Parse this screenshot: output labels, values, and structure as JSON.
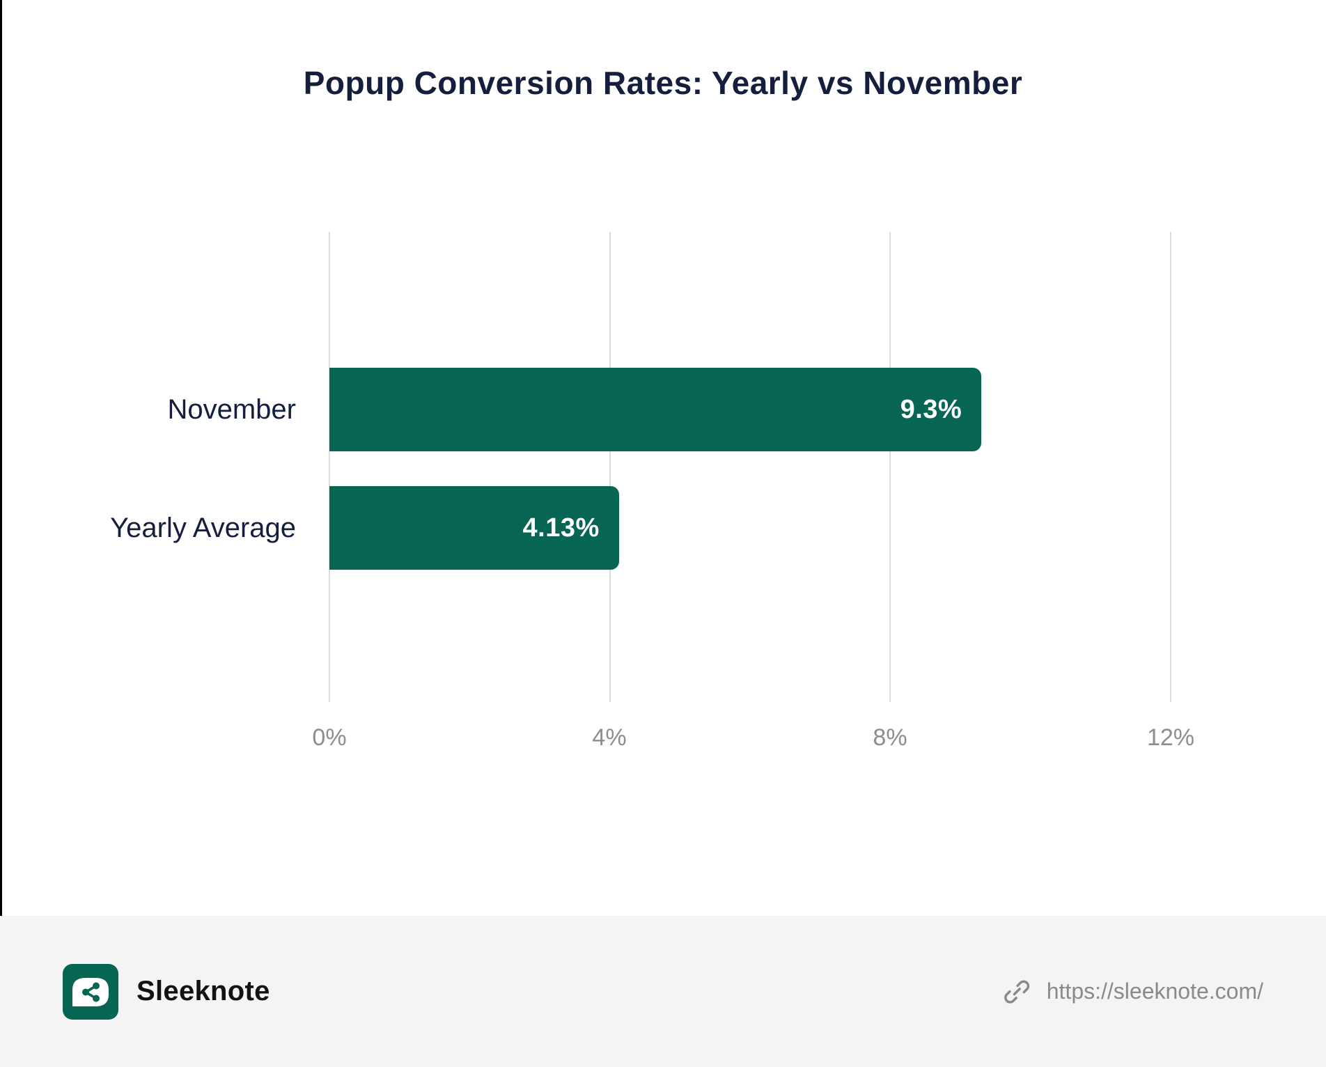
{
  "title": "Popup Conversion Rates: Yearly vs November",
  "chart_data": {
    "type": "bar",
    "orientation": "horizontal",
    "title": "Popup Conversion Rates: Yearly vs November",
    "categories": [
      "November",
      "Yearly Average"
    ],
    "values": [
      9.3,
      4.13
    ],
    "value_labels": [
      "9.3%",
      "4.13%"
    ],
    "xlim": [
      0,
      12
    ],
    "x_ticks": [
      "0%",
      "4%",
      "8%",
      "12%"
    ],
    "x_tick_values": [
      0,
      4,
      8,
      12
    ],
    "grid": true,
    "legend_position": "none",
    "bar_color": "#066553",
    "value_label_color": "#ffffff"
  },
  "footer": {
    "brand": "Sleeknote",
    "url": "https://sleeknote.com/",
    "logo_icon": "sleeknote-share-bubble-icon",
    "link_icon": "chain-link-icon"
  },
  "colors": {
    "bar": "#066553",
    "title_text": "#151e3d",
    "category_text": "#151e3d",
    "tick_text": "#8d8d8d",
    "gridline": "#dcdcdc",
    "footer_bg": "#f4f4f4",
    "url_text": "#8a8a8a",
    "brand_text": "#121212",
    "left_border": "#000000"
  }
}
